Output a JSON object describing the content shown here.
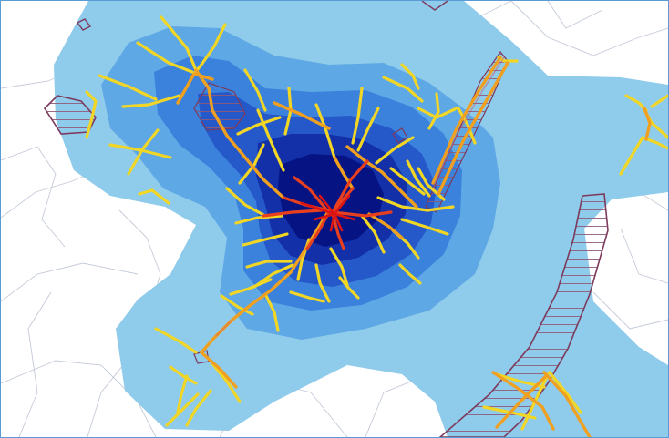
{
  "map": {
    "colors": {
      "background": "#ffffff",
      "frame_border": "#5b9bd5",
      "base_streets": "#c4cad8",
      "density_levels": [
        "#8fcbea",
        "#5fa8e6",
        "#3b82dc",
        "#2558c8",
        "#1330a8",
        "#061483"
      ],
      "hatched_outline": "#7d3a5c",
      "hatch_lines": "#8e5a78",
      "streets_low": "#f2d626",
      "streets_mid": "#f0a020",
      "streets_high": "#e8401e",
      "streets_peak": "#dc1414"
    },
    "layers": [
      "street-network",
      "density-surface",
      "hatched-polygons",
      "network-segments"
    ]
  }
}
